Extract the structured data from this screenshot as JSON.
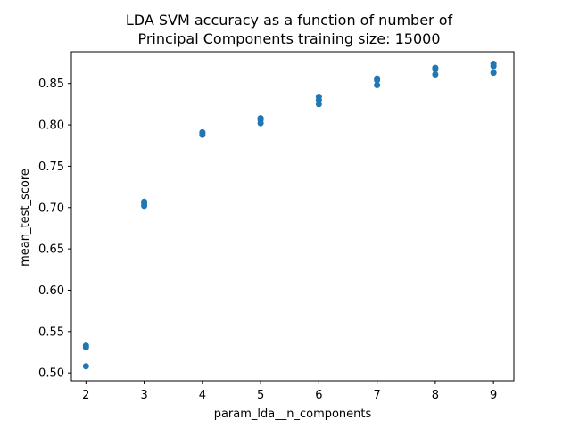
{
  "chart_data": {
    "type": "scatter",
    "title_line1": "LDA SVM accuracy as a function of number of",
    "title_line2": "Principal Components training size: 15000",
    "xlabel": "param_lda__n_components",
    "ylabel": "mean_test_score",
    "xlim": [
      1.75,
      9.35
    ],
    "ylim": [
      0.4905,
      0.8885
    ],
    "xticks": [
      2,
      3,
      4,
      5,
      6,
      7,
      8,
      9
    ],
    "yticks": [
      0.5,
      0.55,
      0.6,
      0.65,
      0.7,
      0.75,
      0.8,
      0.85
    ],
    "ytick_labels": [
      "0.50",
      "0.55",
      "0.60",
      "0.65",
      "0.70",
      "0.75",
      "0.80",
      "0.85"
    ],
    "grid": false,
    "marker_color": "#1f77b4",
    "points": [
      {
        "x": 2,
        "y": 0.533
      },
      {
        "x": 2,
        "y": 0.531
      },
      {
        "x": 2,
        "y": 0.508
      },
      {
        "x": 3,
        "y": 0.707
      },
      {
        "x": 3,
        "y": 0.705
      },
      {
        "x": 3,
        "y": 0.702
      },
      {
        "x": 4,
        "y": 0.791
      },
      {
        "x": 4,
        "y": 0.79
      },
      {
        "x": 4,
        "y": 0.788
      },
      {
        "x": 5,
        "y": 0.808
      },
      {
        "x": 5,
        "y": 0.806
      },
      {
        "x": 5,
        "y": 0.802
      },
      {
        "x": 6,
        "y": 0.834
      },
      {
        "x": 6,
        "y": 0.83
      },
      {
        "x": 6,
        "y": 0.825
      },
      {
        "x": 7,
        "y": 0.856
      },
      {
        "x": 7,
        "y": 0.854
      },
      {
        "x": 7,
        "y": 0.848
      },
      {
        "x": 8,
        "y": 0.869
      },
      {
        "x": 8,
        "y": 0.867
      },
      {
        "x": 8,
        "y": 0.861
      },
      {
        "x": 9,
        "y": 0.874
      },
      {
        "x": 9,
        "y": 0.871
      },
      {
        "x": 9,
        "y": 0.863
      }
    ]
  }
}
